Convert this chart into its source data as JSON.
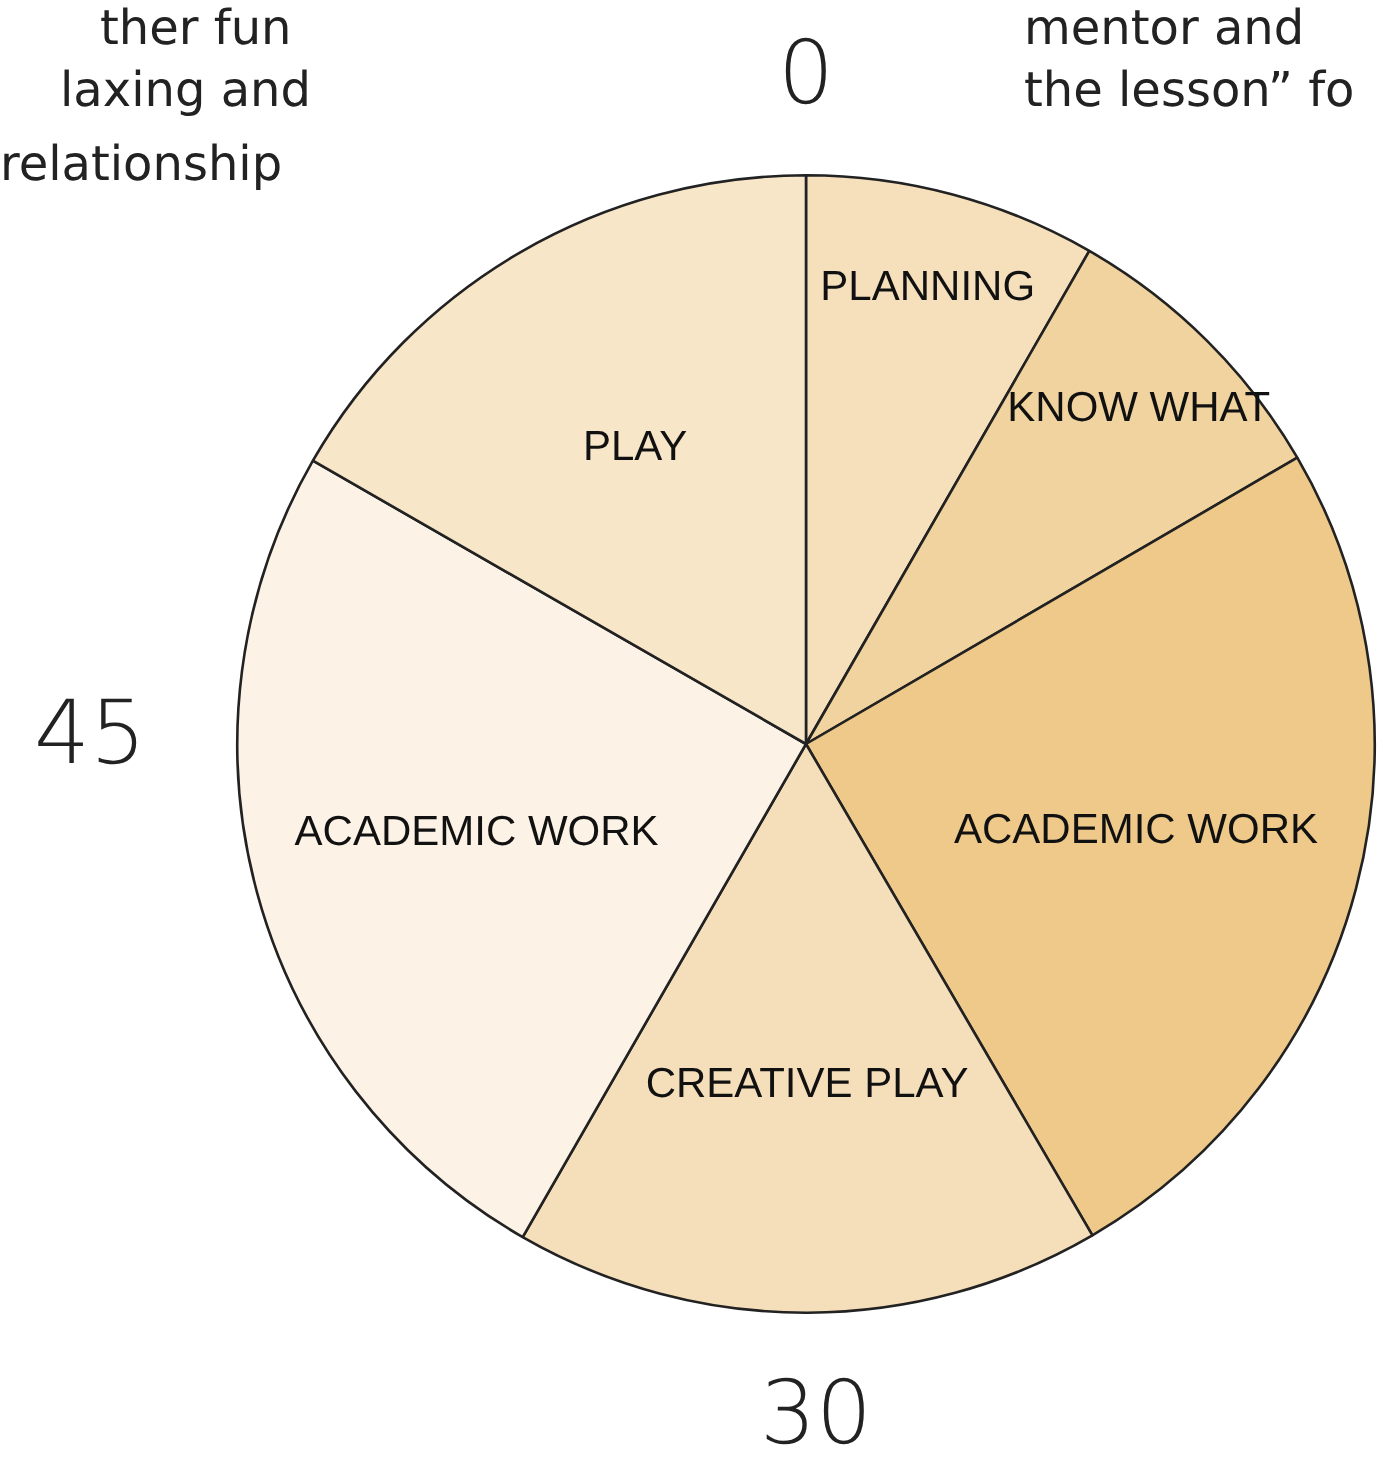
{
  "chart_data": {
    "type": "pie",
    "categories": [
      "PLANNING",
      "KNOW WHAT",
      "ACADEMIC WORK",
      "CREATIVE PLAY",
      "ACADEMIC WORK",
      "PLAY"
    ],
    "values": [
      8.3,
      8.3,
      25,
      16.7,
      25,
      16.7
    ],
    "colors": [
      "#f6e0bc",
      "#f1d39f",
      "#eec98a",
      "#f5dfba",
      "#fcf3e6",
      "#f8e6c9"
    ],
    "legend": false,
    "annotations": [
      "0",
      "30",
      "45",
      "ther fun",
      "laxing and",
      "relationship",
      "mentor and",
      "the lesson” fo"
    ]
  }
}
